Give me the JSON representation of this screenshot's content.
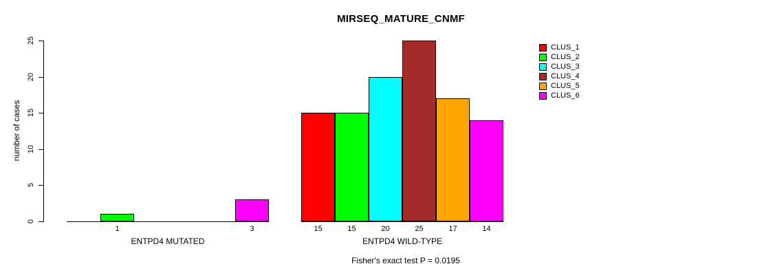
{
  "chart_data": {
    "type": "bar",
    "title": "MIRSEQ_MATURE_CNMF",
    "ylabel": "number of cases",
    "ylim": [
      0,
      25
    ],
    "yticks": [
      0,
      5,
      10,
      15,
      20,
      25
    ],
    "grid": false,
    "legend_position": "right-outside",
    "series": [
      {
        "name": "CLUS_1",
        "color": "#FF0000"
      },
      {
        "name": "CLUS_2",
        "color": "#00FF00"
      },
      {
        "name": "CLUS_3",
        "color": "#00FFFF"
      },
      {
        "name": "CLUS_4",
        "color": "#A52A2A"
      },
      {
        "name": "CLUS_5",
        "color": "#FFA500"
      },
      {
        "name": "CLUS_6",
        "color": "#FF00FF"
      }
    ],
    "groups": [
      {
        "label": "ENTPD4 MUTATED",
        "values": [
          0,
          1,
          0,
          0,
          0,
          3
        ],
        "bar_labels": [
          "",
          "1",
          "",
          "",
          "",
          "3"
        ]
      },
      {
        "label": "ENTPD4 WILD-TYPE",
        "values": [
          15,
          15,
          20,
          25,
          17,
          14
        ],
        "bar_labels": [
          "15",
          "15",
          "20",
          "25",
          "17",
          "14"
        ]
      }
    ],
    "annotation": "Fisher's exact test P = 0.0195"
  }
}
